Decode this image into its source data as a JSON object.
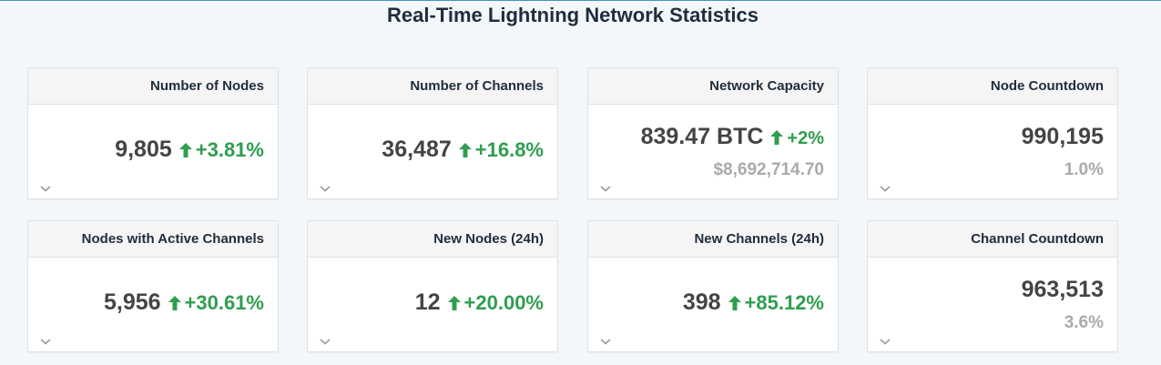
{
  "page": {
    "title": "Real-Time Lightning Network Statistics"
  },
  "colors": {
    "positive": "#2e9e4f",
    "muted": "#aaaaaa",
    "header_bg": "#f5f5f5",
    "page_bg": "#f4f7fa"
  },
  "icons": {
    "change": "arrow-up-icon",
    "expand": "chevron-down-icon"
  },
  "cards": [
    {
      "title": "Number of Nodes",
      "value": "9,805",
      "change": "+3.81%"
    },
    {
      "title": "Number of Channels",
      "value": "36,487",
      "change": "+16.8%"
    },
    {
      "title": "Network Capacity",
      "value": "839.47 BTC",
      "change": "+2%",
      "sub": "$8,692,714.70"
    },
    {
      "title": "Node Countdown",
      "value": "990,195",
      "sub": "1.0%"
    },
    {
      "title": "Nodes with Active Channels",
      "value": "5,956",
      "change": "+30.61%"
    },
    {
      "title": "New Nodes (24h)",
      "value": "12",
      "change": "+20.00%"
    },
    {
      "title": "New Channels (24h)",
      "value": "398",
      "change": "+85.12%"
    },
    {
      "title": "Channel Countdown",
      "value": "963,513",
      "sub": "3.6%"
    }
  ]
}
